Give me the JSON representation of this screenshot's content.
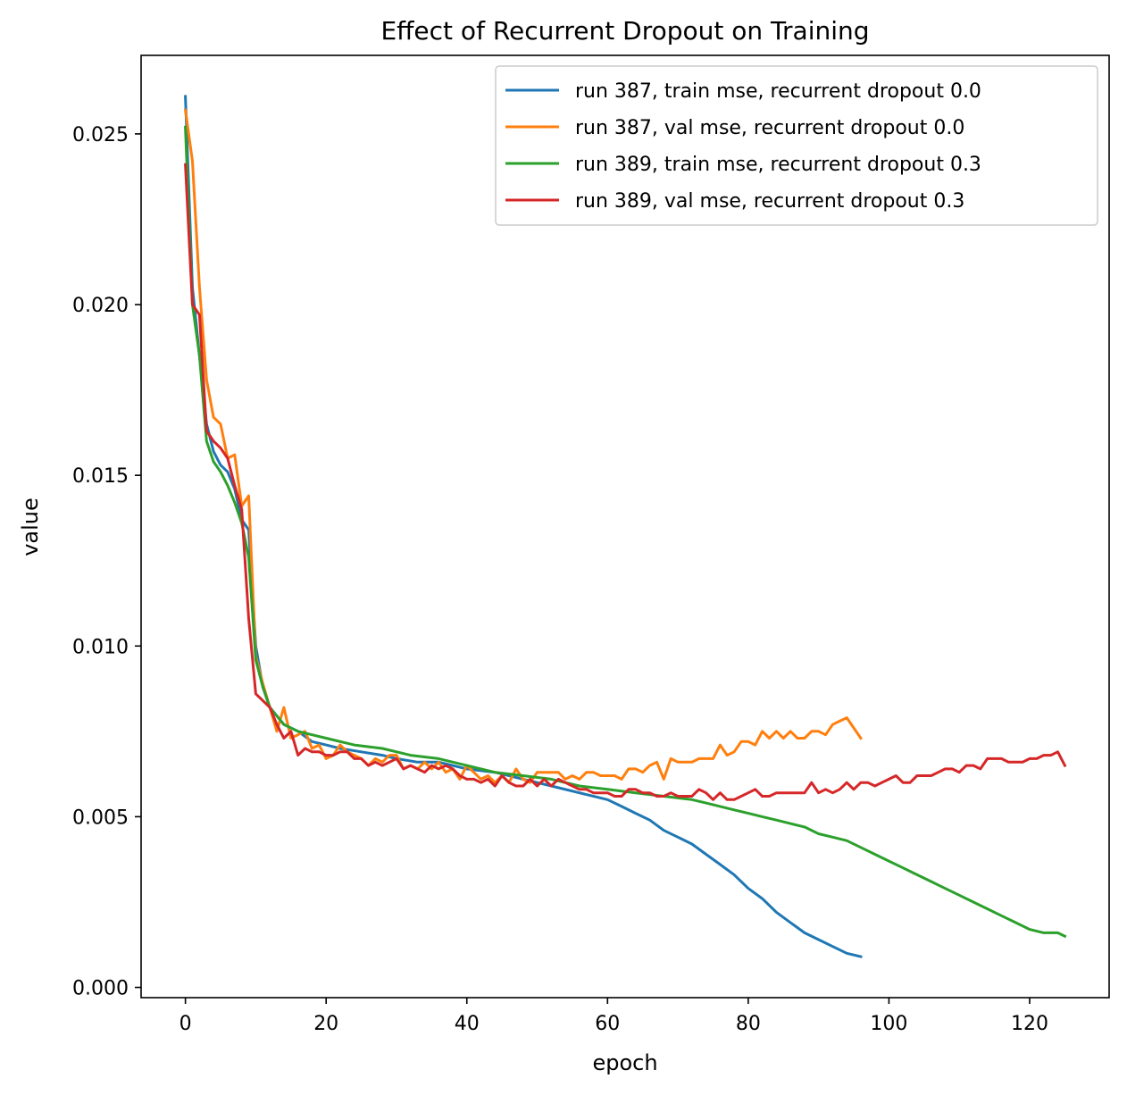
{
  "chart_data": {
    "type": "line",
    "title": "Effect of Recurrent Dropout on Training",
    "xlabel": "epoch",
    "ylabel": "value",
    "xlim": [
      -6.3,
      131.3
    ],
    "ylim": [
      -0.0003,
      0.0273
    ],
    "xticks": [
      0,
      20,
      40,
      60,
      80,
      100,
      120
    ],
    "xtick_labels": [
      "0",
      "20",
      "40",
      "60",
      "80",
      "100",
      "120"
    ],
    "yticks": [
      0.0,
      0.005,
      0.01,
      0.015,
      0.02,
      0.025
    ],
    "ytick_labels": [
      "0.000",
      "0.005",
      "0.010",
      "0.015",
      "0.020",
      "0.025"
    ],
    "grid": false,
    "legend_position": "top-right",
    "series": [
      {
        "name": "run 387, train mse, recurrent dropout 0.0",
        "color": "#1f77b4",
        "x": [
          0,
          1,
          2,
          3,
          4,
          5,
          6,
          7,
          8,
          9,
          10,
          11,
          12,
          14,
          16,
          18,
          20,
          22,
          25,
          28,
          30,
          33,
          36,
          40,
          44,
          48,
          52,
          56,
          60,
          62,
          64,
          66,
          68,
          70,
          72,
          74,
          76,
          78,
          80,
          82,
          84,
          86,
          88,
          90,
          92,
          94,
          96
        ],
        "y": [
          0.0261,
          0.0205,
          0.0185,
          0.0165,
          0.0157,
          0.0153,
          0.0151,
          0.0146,
          0.0137,
          0.0134,
          0.01,
          0.0088,
          0.0082,
          0.0077,
          0.0075,
          0.0072,
          0.0071,
          0.007,
          0.0069,
          0.0068,
          0.0067,
          0.0066,
          0.0066,
          0.0064,
          0.0063,
          0.0061,
          0.0059,
          0.0057,
          0.0055,
          0.0053,
          0.0051,
          0.0049,
          0.0046,
          0.0044,
          0.0042,
          0.0039,
          0.0036,
          0.0033,
          0.0029,
          0.0026,
          0.0022,
          0.0019,
          0.0016,
          0.0014,
          0.0012,
          0.001,
          0.0009
        ]
      },
      {
        "name": "run 387, val mse, recurrent dropout 0.0",
        "color": "#ff7f0e",
        "x": [
          0,
          1,
          2,
          3,
          4,
          5,
          6,
          7,
          8,
          9,
          10,
          11,
          12,
          13,
          14,
          15,
          16,
          17,
          18,
          19,
          20,
          21,
          22,
          23,
          24,
          25,
          26,
          27,
          28,
          29,
          30,
          31,
          32,
          33,
          34,
          35,
          36,
          37,
          38,
          39,
          40,
          41,
          42,
          43,
          44,
          45,
          46,
          47,
          48,
          49,
          50,
          51,
          52,
          53,
          54,
          55,
          56,
          57,
          58,
          59,
          60,
          61,
          62,
          63,
          64,
          65,
          66,
          67,
          68,
          69,
          70,
          71,
          72,
          73,
          74,
          75,
          76,
          77,
          78,
          79,
          80,
          81,
          82,
          83,
          84,
          85,
          86,
          87,
          88,
          89,
          90,
          91,
          92,
          93,
          94,
          95,
          96
        ],
        "y": [
          0.0257,
          0.0242,
          0.0205,
          0.0178,
          0.0167,
          0.0165,
          0.0155,
          0.0156,
          0.0141,
          0.0144,
          0.0097,
          0.0089,
          0.0082,
          0.0075,
          0.0082,
          0.0073,
          0.0074,
          0.0075,
          0.007,
          0.0071,
          0.0067,
          0.0068,
          0.0071,
          0.0069,
          0.0068,
          0.0067,
          0.0065,
          0.0067,
          0.0066,
          0.0068,
          0.0068,
          0.0064,
          0.0065,
          0.0064,
          0.0066,
          0.0064,
          0.0066,
          0.0063,
          0.0064,
          0.0061,
          0.0065,
          0.0063,
          0.0061,
          0.0062,
          0.006,
          0.0062,
          0.006,
          0.0064,
          0.0061,
          0.006,
          0.0063,
          0.0063,
          0.0063,
          0.0063,
          0.0061,
          0.0062,
          0.0061,
          0.0063,
          0.0063,
          0.0062,
          0.0062,
          0.0062,
          0.0061,
          0.0064,
          0.0064,
          0.0063,
          0.0065,
          0.0066,
          0.0061,
          0.0067,
          0.0066,
          0.0066,
          0.0066,
          0.0067,
          0.0067,
          0.0067,
          0.0071,
          0.0068,
          0.0069,
          0.0072,
          0.0072,
          0.0071,
          0.0075,
          0.0073,
          0.0075,
          0.0073,
          0.0075,
          0.0073,
          0.0073,
          0.0075,
          0.0075,
          0.0074,
          0.0077,
          0.0078,
          0.0079,
          0.0076,
          0.0073
        ]
      },
      {
        "name": "run 389, train mse, recurrent dropout 0.3",
        "color": "#2ca02c",
        "x": [
          0,
          1,
          2,
          3,
          4,
          5,
          6,
          7,
          8,
          9,
          10,
          11,
          12,
          14,
          16,
          18,
          20,
          24,
          28,
          32,
          36,
          40,
          44,
          48,
          52,
          56,
          60,
          64,
          68,
          72,
          74,
          76,
          78,
          80,
          82,
          84,
          86,
          88,
          90,
          92,
          94,
          96,
          98,
          100,
          102,
          104,
          106,
          108,
          110,
          112,
          114,
          116,
          118,
          120,
          122,
          124,
          125
        ],
        "y": [
          0.0252,
          0.02,
          0.0185,
          0.016,
          0.0154,
          0.0151,
          0.0147,
          0.0142,
          0.0136,
          0.0126,
          0.0096,
          0.0088,
          0.0082,
          0.0077,
          0.0075,
          0.0074,
          0.0073,
          0.0071,
          0.007,
          0.0068,
          0.0067,
          0.0065,
          0.0063,
          0.0062,
          0.0061,
          0.0059,
          0.0058,
          0.0057,
          0.0056,
          0.0055,
          0.0054,
          0.0053,
          0.0052,
          0.0051,
          0.005,
          0.0049,
          0.0048,
          0.0047,
          0.0045,
          0.0044,
          0.0043,
          0.0041,
          0.0039,
          0.0037,
          0.0035,
          0.0033,
          0.0031,
          0.0029,
          0.0027,
          0.0025,
          0.0023,
          0.0021,
          0.0019,
          0.0017,
          0.0016,
          0.0016,
          0.0015
        ]
      },
      {
        "name": "run 389, val mse, recurrent dropout 0.3",
        "color": "#d62728",
        "x": [
          0,
          1,
          2,
          3,
          4,
          5,
          6,
          7,
          8,
          9,
          10,
          11,
          12,
          13,
          14,
          15,
          16,
          17,
          18,
          19,
          20,
          21,
          22,
          23,
          24,
          25,
          26,
          27,
          28,
          29,
          30,
          31,
          32,
          33,
          34,
          35,
          36,
          37,
          38,
          39,
          40,
          41,
          42,
          43,
          44,
          45,
          46,
          47,
          48,
          49,
          50,
          51,
          52,
          53,
          54,
          55,
          56,
          57,
          58,
          59,
          60,
          61,
          62,
          63,
          64,
          65,
          66,
          67,
          68,
          69,
          70,
          71,
          72,
          73,
          74,
          75,
          76,
          77,
          78,
          79,
          80,
          81,
          82,
          83,
          84,
          85,
          86,
          87,
          88,
          89,
          90,
          91,
          92,
          93,
          94,
          95,
          96,
          97,
          98,
          99,
          100,
          101,
          102,
          103,
          104,
          105,
          106,
          107,
          108,
          109,
          110,
          111,
          112,
          113,
          114,
          115,
          116,
          117,
          118,
          119,
          120,
          121,
          122,
          123,
          124,
          125
        ],
        "y": [
          0.0241,
          0.02,
          0.0197,
          0.0163,
          0.016,
          0.0158,
          0.0155,
          0.0147,
          0.014,
          0.0108,
          0.0086,
          0.0084,
          0.0082,
          0.0077,
          0.0073,
          0.0075,
          0.0068,
          0.007,
          0.0069,
          0.0069,
          0.0068,
          0.0068,
          0.0069,
          0.0069,
          0.0067,
          0.0067,
          0.0065,
          0.0066,
          0.0065,
          0.0066,
          0.0067,
          0.0064,
          0.0065,
          0.0064,
          0.0063,
          0.0065,
          0.0064,
          0.0065,
          0.0064,
          0.0062,
          0.0061,
          0.0061,
          0.006,
          0.0061,
          0.0059,
          0.0062,
          0.006,
          0.0059,
          0.0059,
          0.0061,
          0.0059,
          0.0061,
          0.0059,
          0.0061,
          0.006,
          0.0059,
          0.0058,
          0.0058,
          0.0057,
          0.0057,
          0.0057,
          0.0056,
          0.0056,
          0.0058,
          0.0058,
          0.0057,
          0.0057,
          0.0056,
          0.0056,
          0.0057,
          0.0056,
          0.0056,
          0.0056,
          0.0058,
          0.0057,
          0.0055,
          0.0057,
          0.0055,
          0.0055,
          0.0056,
          0.0057,
          0.0058,
          0.0056,
          0.0056,
          0.0057,
          0.0057,
          0.0057,
          0.0057,
          0.0057,
          0.006,
          0.0057,
          0.0058,
          0.0057,
          0.0058,
          0.006,
          0.0058,
          0.006,
          0.006,
          0.0059,
          0.006,
          0.0061,
          0.0062,
          0.006,
          0.006,
          0.0062,
          0.0062,
          0.0062,
          0.0063,
          0.0064,
          0.0064,
          0.0063,
          0.0065,
          0.0065,
          0.0064,
          0.0067,
          0.0067,
          0.0067,
          0.0066,
          0.0066,
          0.0066,
          0.0067,
          0.0067,
          0.0068,
          0.0068,
          0.0069,
          0.0065
        ]
      }
    ]
  }
}
